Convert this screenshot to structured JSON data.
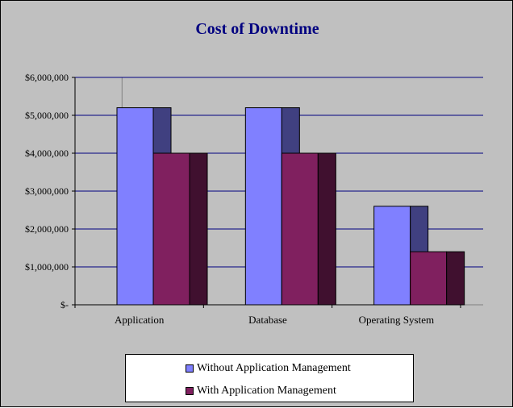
{
  "chart_data": {
    "type": "bar",
    "title": "Cost of Downtime",
    "categories": [
      "Application",
      "Database",
      "Operating System"
    ],
    "series": [
      {
        "name": "Without Application Management",
        "values": [
          5200000,
          5200000,
          2600000
        ]
      },
      {
        "name": "With Application Management",
        "values": [
          4000000,
          4000000,
          1400000
        ]
      }
    ],
    "yticks": [
      "$-",
      "$1,000,000",
      "$2,000,000",
      "$3,000,000",
      "$4,000,000",
      "$5,000,000",
      "$6,000,000"
    ],
    "ylim": [
      0,
      6000000
    ],
    "grid": true,
    "legend_position": "bottom",
    "colors": {
      "background": "#c0c0c0",
      "title": "#000080",
      "gridline": "#000080",
      "without_front": "#8080ff",
      "without_side": "#404080",
      "with_front": "#80205f",
      "with_side": "#40102f"
    }
  }
}
